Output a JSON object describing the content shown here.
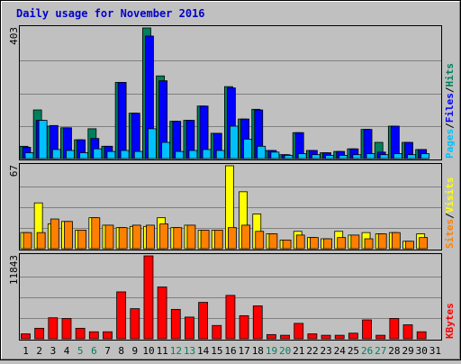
{
  "title": "Daily usage for November 2016",
  "colors": {
    "background": "#c0c0c0",
    "panel_border": "#000000",
    "gridline": "#808080",
    "hits": "#00805c",
    "files": "#0000ff",
    "pages": "#00c0ff",
    "visits": "#ffff00",
    "sites": "#ff8000",
    "kbytes": "#ff0000",
    "weekday_label": "#000000",
    "weekend_label": "#00805c"
  },
  "chart_data": [
    {
      "type": "bar",
      "panel": "top",
      "max_label": "403",
      "ylim": [
        0,
        403
      ],
      "legend": [
        {
          "name": "Pages",
          "color": "#00c0ff"
        },
        {
          "name": "Files",
          "color": "#0000ff"
        },
        {
          "name": "Hits",
          "color": "#00805c"
        }
      ],
      "legend_separator": "/",
      "categories": [
        "1",
        "2",
        "3",
        "4",
        "5",
        "6",
        "7",
        "8",
        "9",
        "10",
        "11",
        "12",
        "13",
        "14",
        "15",
        "16",
        "17",
        "18",
        "19",
        "20",
        "21",
        "22",
        "23",
        "24",
        "25",
        "26",
        "27",
        "28",
        "29",
        "30",
        "31"
      ],
      "series": [
        {
          "name": "Hits",
          "values": [
            38,
            150,
            100,
            95,
            58,
            92,
            38,
            235,
            140,
            403,
            255,
            115,
            118,
            162,
            78,
            222,
            122,
            152,
            25,
            12,
            80,
            25,
            18,
            22,
            30,
            90,
            50,
            100,
            50,
            28,
            0
          ]
        },
        {
          "name": "Files",
          "values": [
            35,
            118,
            102,
            95,
            58,
            62,
            38,
            235,
            140,
            378,
            240,
            115,
            118,
            162,
            78,
            218,
            122,
            150,
            25,
            12,
            80,
            25,
            18,
            22,
            30,
            90,
            20,
            100,
            50,
            28,
            0
          ]
        },
        {
          "name": "Pages",
          "values": [
            18,
            118,
            28,
            25,
            18,
            30,
            22,
            25,
            22,
            92,
            50,
            22,
            25,
            28,
            25,
            100,
            60,
            38,
            20,
            10,
            15,
            12,
            10,
            10,
            12,
            15,
            12,
            15,
            12,
            15,
            0
          ]
        }
      ]
    },
    {
      "type": "bar",
      "panel": "middle",
      "max_label": "67",
      "ylim": [
        0,
        67
      ],
      "legend": [
        {
          "name": "Sites",
          "color": "#ff8000"
        },
        {
          "name": "Visits",
          "color": "#ffff00"
        }
      ],
      "legend_separator": "/",
      "categories": [
        "1",
        "2",
        "3",
        "4",
        "5",
        "6",
        "7",
        "8",
        "9",
        "10",
        "11",
        "12",
        "13",
        "14",
        "15",
        "16",
        "17",
        "18",
        "19",
        "20",
        "21",
        "22",
        "23",
        "24",
        "25",
        "26",
        "27",
        "28",
        "29",
        "30",
        "31"
      ],
      "series": [
        {
          "name": "Visits",
          "values": [
            13,
            37,
            20,
            22,
            15,
            25,
            19,
            17,
            18,
            18,
            25,
            17,
            19,
            15,
            15,
            67,
            46,
            28,
            12,
            7,
            14,
            9,
            8,
            14,
            11,
            13,
            12,
            13,
            6,
            12,
            0
          ]
        },
        {
          "name": "Sites",
          "values": [
            13,
            13,
            24,
            22,
            15,
            25,
            19,
            17,
            19,
            19,
            20,
            17,
            19,
            15,
            15,
            17,
            19,
            14,
            12,
            7,
            11,
            9,
            8,
            9,
            11,
            8,
            12,
            13,
            6,
            9,
            0
          ]
        }
      ]
    },
    {
      "type": "bar",
      "panel": "bottom",
      "max_label": "11843",
      "ylim": [
        0,
        11843
      ],
      "legend": [
        {
          "name": "KBytes",
          "color": "#ff0000"
        }
      ],
      "legend_separator": "",
      "categories": [
        "1",
        "2",
        "3",
        "4",
        "5",
        "6",
        "7",
        "8",
        "9",
        "10",
        "11",
        "12",
        "13",
        "14",
        "15",
        "16",
        "17",
        "18",
        "19",
        "20",
        "21",
        "22",
        "23",
        "24",
        "25",
        "26",
        "27",
        "28",
        "29",
        "30",
        "31"
      ],
      "series": [
        {
          "name": "KBytes",
          "values": [
            700,
            1500,
            3000,
            2900,
            1500,
            1000,
            1000,
            6700,
            4300,
            11843,
            7400,
            4200,
            3100,
            5200,
            1900,
            6200,
            3300,
            4700,
            600,
            500,
            2200,
            700,
            500,
            500,
            800,
            2700,
            500,
            2900,
            2000,
            1000,
            0
          ]
        }
      ]
    }
  ],
  "weekend_days": [
    "5",
    "6",
    "12",
    "13",
    "19",
    "20",
    "26",
    "27"
  ]
}
